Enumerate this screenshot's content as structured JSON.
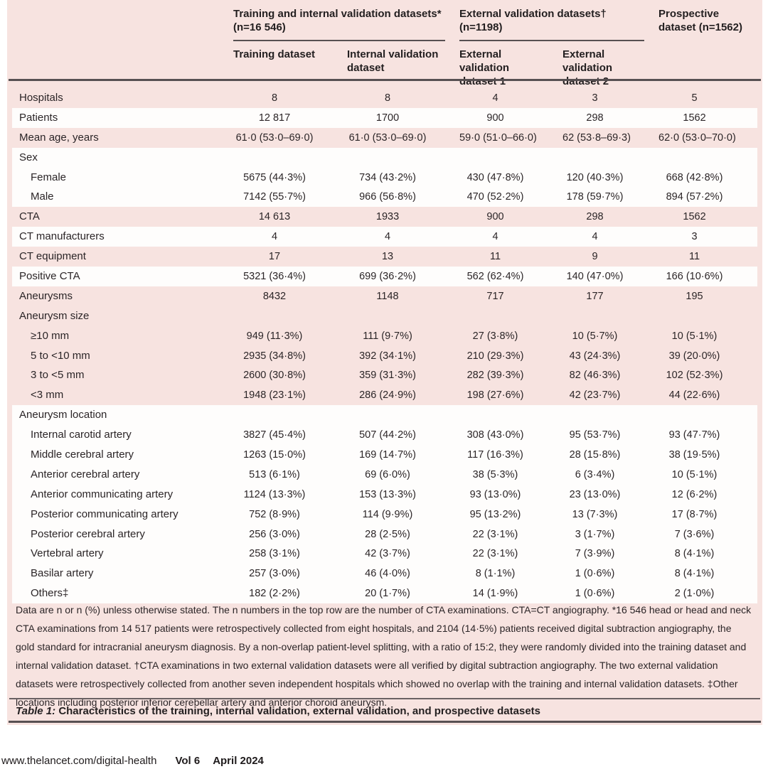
{
  "colors": {
    "pink_background": "#f7e3e0",
    "stripe_white": "#fefdfc",
    "rule_dark": "#575052",
    "rule_thin": "#6a6163",
    "text": "#2b2527"
  },
  "header": {
    "spanner1": {
      "title": "Training and internal validation datasets*",
      "n": "(n=16 546)"
    },
    "spanner2": {
      "title": "External validation datasets†",
      "n": "(n=1198)"
    },
    "spanner3": {
      "title": "Prospective dataset (n=1562)"
    },
    "columns": [
      "Training dataset",
      "Internal validation dataset",
      "External validation dataset 1",
      "External validation dataset 2"
    ]
  },
  "table": {
    "rows": [
      {
        "label": "Hospitals",
        "indent": false,
        "shade": "pink",
        "values": [
          "8",
          "8",
          "4",
          "3",
          "5"
        ]
      },
      {
        "label": "Patients",
        "indent": false,
        "shade": "white",
        "values": [
          "12 817",
          "1700",
          "900",
          "298",
          "1562"
        ]
      },
      {
        "label": "Mean age, years",
        "indent": false,
        "shade": "pink",
        "values": [
          "61·0 (53·0–69·0)",
          "61·0 (53·0–69·0)",
          "59·0 (51·0–66·0)",
          "62 (53·8–69·3)",
          "62·0 (53·0–70·0)"
        ]
      },
      {
        "label": "Sex",
        "indent": false,
        "shade": "white",
        "values": []
      },
      {
        "label": "Female",
        "indent": true,
        "shade": "white",
        "values": [
          "5675 (44·3%)",
          "734 (43·2%)",
          "430 (47·8%)",
          "120 (40·3%)",
          "668 (42·8%)"
        ]
      },
      {
        "label": "Male",
        "indent": true,
        "shade": "white",
        "values": [
          "7142 (55·7%)",
          "966 (56·8%)",
          "470 (52·2%)",
          "178 (59·7%)",
          "894 (57·2%)"
        ]
      },
      {
        "label": "CTA",
        "indent": false,
        "shade": "pink",
        "values": [
          "14 613",
          "1933",
          "900",
          "298",
          "1562"
        ]
      },
      {
        "label": "CT manufacturers",
        "indent": false,
        "shade": "white",
        "values": [
          "4",
          "4",
          "4",
          "4",
          "3"
        ]
      },
      {
        "label": "CT equipment",
        "indent": false,
        "shade": "pink",
        "values": [
          "17",
          "13",
          "11",
          "9",
          "11"
        ]
      },
      {
        "label": "Positive CTA",
        "indent": false,
        "shade": "white",
        "values": [
          "5321 (36·4%)",
          "699 (36·2%)",
          "562 (62·4%)",
          "140 (47·0%)",
          "166 (10·6%)"
        ]
      },
      {
        "label": "Aneurysms",
        "indent": false,
        "shade": "pink",
        "values": [
          "8432",
          "1148",
          "717",
          "177",
          "195"
        ]
      },
      {
        "label": "Aneurysm size",
        "indent": false,
        "shade": "pink",
        "values": []
      },
      {
        "label": "≥10 mm",
        "indent": true,
        "shade": "pink",
        "values": [
          "949 (11·3%)",
          "111 (9·7%)",
          "27 (3·8%)",
          "10 (5·7%)",
          "10 (5·1%)"
        ]
      },
      {
        "label": "5 to <10 mm",
        "indent": true,
        "shade": "pink",
        "values": [
          "2935 (34·8%)",
          "392 (34·1%)",
          "210 (29·3%)",
          "43 (24·3%)",
          "39 (20·0%)"
        ]
      },
      {
        "label": "3 to <5 mm",
        "indent": true,
        "shade": "pink",
        "values": [
          "2600 (30·8%)",
          "359 (31·3%)",
          "282 (39·3%)",
          "82 (46·3%)",
          "102 (52·3%)"
        ]
      },
      {
        "label": "<3 mm",
        "indent": true,
        "shade": "pink",
        "values": [
          "1948 (23·1%)",
          "286 (24·9%)",
          "198 (27·6%)",
          "42 (23·7%)",
          "44 (22·6%)"
        ]
      },
      {
        "label": "Aneurysm location",
        "indent": false,
        "shade": "white",
        "values": []
      },
      {
        "label": "Internal carotid artery",
        "indent": true,
        "shade": "white",
        "values": [
          "3827 (45·4%)",
          "507 (44·2%)",
          "308 (43·0%)",
          "95 (53·7%)",
          "93 (47·7%)"
        ]
      },
      {
        "label": "Middle cerebral artery",
        "indent": true,
        "shade": "white",
        "values": [
          "1263 (15·0%)",
          "169 (14·7%)",
          "117 (16·3%)",
          "28 (15·8%)",
          "38 (19·5%)"
        ]
      },
      {
        "label": "Anterior cerebral artery",
        "indent": true,
        "shade": "white",
        "values": [
          "513 (6·1%)",
          "69 (6·0%)",
          "38 (5·3%)",
          "6 (3·4%)",
          "10 (5·1%)"
        ]
      },
      {
        "label": "Anterior communicating artery",
        "indent": true,
        "shade": "white",
        "values": [
          "1124 (13·3%)",
          "153 (13·3%)",
          "93 (13·0%)",
          "23 (13·0%)",
          "12 (6·2%)"
        ]
      },
      {
        "label": "Posterior communicating artery",
        "indent": true,
        "shade": "white",
        "values": [
          "752 (8·9%)",
          "114 (9·9%)",
          "95 (13·2%)",
          "13 (7·3%)",
          "17 (8·7%)"
        ]
      },
      {
        "label": "Posterior cerebral artery",
        "indent": true,
        "shade": "white",
        "values": [
          "256 (3·0%)",
          "28 (2·5%)",
          "22 (3·1%)",
          "3 (1·7%)",
          "7 (3·6%)"
        ]
      },
      {
        "label": "Vertebral artery",
        "indent": true,
        "shade": "white",
        "values": [
          "258 (3·1%)",
          "42 (3·7%)",
          "22 (3·1%)",
          "7 (3·9%)",
          "8 (4·1%)"
        ]
      },
      {
        "label": "Basilar artery",
        "indent": true,
        "shade": "white",
        "values": [
          "257 (3·0%)",
          "46 (4·0%)",
          "8 (1·1%)",
          "1 (0·6%)",
          "8 (4·1%)"
        ]
      },
      {
        "label": "Others‡",
        "indent": true,
        "shade": "white",
        "values": [
          "182 (2·2%)",
          "20 (1·7%)",
          "14 (1·9%)",
          "1 (0·6%)",
          "2 (1·0%)"
        ]
      }
    ]
  },
  "footnote": "Data are n or n (%) unless otherwise stated. The n numbers in the top row are the number of CTA examinations. CTA=CT angiography. *16 546 head or head and neck CTA examinations from 14 517 patients were retrospectively collected from eight hospitals, and 2104 (14·5%) patients received digital subtraction angiography, the gold standard for intracranial aneurysm diagnosis. By a non-overlap patient-level splitting, with a ratio of 15:2, they were randomly divided into the training dataset and internal validation dataset. †CTA examinations in two external validation datasets were all verified by digital subtraction angiography. The two external validation datasets were retrospectively collected from another seven independent hospitals which showed no overlap with the training and internal validation datasets. ‡Other locations including posterior inferior cerebellar artery and anterior choroid aneurysm.",
  "caption": {
    "prefix": "Table 1:",
    "text": "Characteristics of the training, internal validation, external validation, and prospective datasets"
  },
  "footer": {
    "url": "www.thelancet.com/digital-health",
    "volume": "Vol 6",
    "date": "April 2024"
  }
}
